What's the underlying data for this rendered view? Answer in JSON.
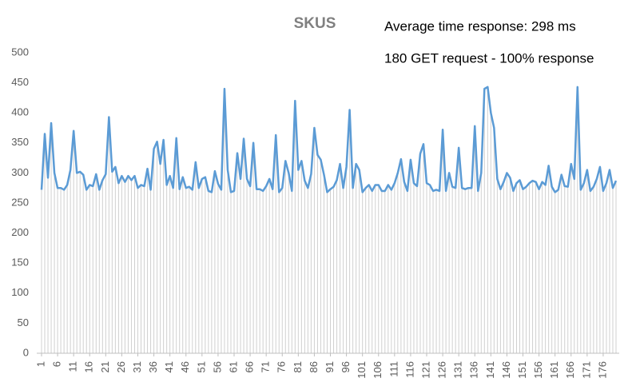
{
  "chart_data": {
    "type": "line",
    "title": "SKUS",
    "annotations": [
      "Average time response: 298 ms",
      "180 GET request - 100% response"
    ],
    "categories": [
      1,
      null,
      null,
      null,
      null,
      6,
      null,
      null,
      null,
      null,
      11,
      null,
      null,
      null,
      null,
      16,
      null,
      null,
      null,
      null,
      21,
      null,
      null,
      null,
      null,
      26,
      null,
      null,
      null,
      null,
      31,
      null,
      null,
      null,
      null,
      36,
      null,
      null,
      null,
      null,
      41,
      null,
      null,
      null,
      null,
      46,
      null,
      null,
      null,
      null,
      51,
      null,
      null,
      null,
      null,
      56,
      null,
      null,
      null,
      null,
      61,
      null,
      null,
      null,
      null,
      66,
      null,
      null,
      null,
      null,
      71,
      null,
      null,
      null,
      null,
      76,
      null,
      null,
      null,
      null,
      81,
      null,
      null,
      null,
      null,
      86,
      null,
      null,
      null,
      null,
      91,
      null,
      null,
      null,
      null,
      96,
      null,
      null,
      null,
      null,
      101,
      null,
      null,
      null,
      null,
      106,
      null,
      null,
      null,
      null,
      111,
      null,
      null,
      null,
      null,
      116,
      null,
      null,
      null,
      null,
      121,
      null,
      null,
      null,
      null,
      126,
      null,
      null,
      null,
      null,
      131,
      null,
      null,
      null,
      null,
      136,
      null,
      null,
      null,
      null,
      141,
      null,
      null,
      null,
      null,
      146,
      null,
      null,
      null,
      null,
      151,
      null,
      null,
      null,
      null,
      156,
      null,
      null,
      null,
      null,
      161,
      null,
      null,
      null,
      null,
      166,
      null,
      null,
      null,
      null,
      171,
      null,
      null,
      null,
      null,
      176,
      null,
      null,
      null,
      null
    ],
    "values": [
      272,
      365,
      292,
      383,
      300,
      275,
      275,
      272,
      280,
      305,
      370,
      300,
      302,
      297,
      272,
      280,
      278,
      298,
      272,
      288,
      298,
      393,
      302,
      310,
      283,
      295,
      285,
      295,
      288,
      295,
      275,
      280,
      278,
      307,
      272,
      340,
      352,
      315,
      355,
      280,
      295,
      275,
      358,
      273,
      293,
      275,
      277,
      272,
      318,
      275,
      290,
      293,
      270,
      268,
      303,
      282,
      272,
      440,
      305,
      268,
      270,
      333,
      290,
      357,
      290,
      278,
      350,
      273,
      273,
      270,
      278,
      290,
      273,
      363,
      268,
      275,
      320,
      300,
      270,
      420,
      305,
      320,
      287,
      275,
      298,
      375,
      330,
      322,
      297,
      268,
      273,
      277,
      288,
      315,
      275,
      310,
      405,
      275,
      315,
      305,
      268,
      275,
      280,
      270,
      280,
      280,
      270,
      270,
      280,
      272,
      283,
      300,
      323,
      285,
      270,
      322,
      283,
      278,
      332,
      348,
      283,
      280,
      270,
      272,
      270,
      372,
      270,
      300,
      277,
      275,
      342,
      275,
      273,
      275,
      275,
      378,
      270,
      300,
      440,
      443,
      400,
      375,
      290,
      273,
      285,
      300,
      292,
      270,
      283,
      288,
      273,
      277,
      283,
      287,
      285,
      273,
      285,
      280,
      312,
      277,
      268,
      272,
      297,
      278,
      277,
      315,
      290,
      443,
      272,
      283,
      305,
      270,
      277,
      290,
      310,
      270,
      283,
      305,
      275,
      287
    ],
    "color": "#5b9bd5",
    "drop_line_color": "#d0d0d0",
    "ylim": [
      0,
      500
    ],
    "yticks": [
      0,
      50,
      100,
      150,
      200,
      250,
      300,
      350,
      400,
      450,
      500
    ]
  }
}
